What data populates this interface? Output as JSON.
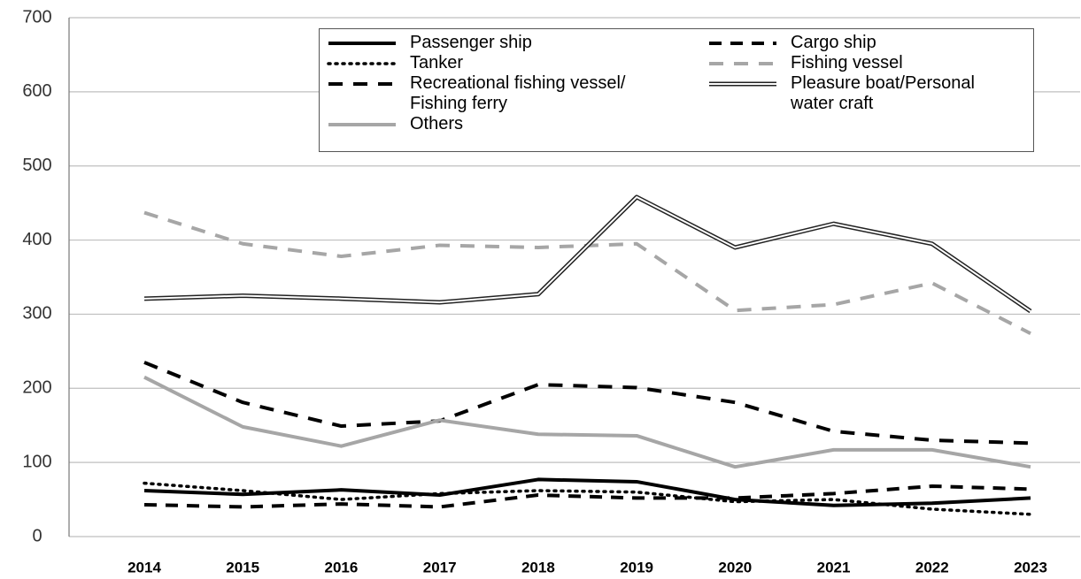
{
  "chart_data": {
    "type": "line",
    "categories": [
      "2014",
      "2015",
      "2016",
      "2017",
      "2018",
      "2019",
      "2020",
      "2021",
      "2022",
      "2023"
    ],
    "series": [
      {
        "name": "Passenger ship",
        "color": "#000000",
        "dash": "none",
        "width": 4,
        "values": [
          62,
          57,
          63,
          56,
          77,
          74,
          50,
          42,
          45,
          52
        ]
      },
      {
        "name": "Cargo ship",
        "color": "#000000",
        "dash": "14 10",
        "width": 4,
        "values": [
          43,
          40,
          44,
          40,
          56,
          52,
          52,
          58,
          68,
          64
        ]
      },
      {
        "name": "Tanker",
        "color": "#000000",
        "dash": "2 6",
        "width": 3.5,
        "values": [
          72,
          62,
          50,
          58,
          62,
          60,
          47,
          50,
          37,
          30
        ]
      },
      {
        "name": "Fishing vessel",
        "color": "#a6a6a6",
        "dash": "16 12",
        "width": 4,
        "values": [
          437,
          395,
          378,
          393,
          390,
          395,
          305,
          313,
          342,
          274
        ]
      },
      {
        "name": "Recreational fishing vessel/\nFishing ferry",
        "color": "#000000",
        "dash": "16 12",
        "width": 4,
        "values": [
          235,
          181,
          149,
          156,
          205,
          201,
          181,
          142,
          130,
          126
        ]
      },
      {
        "name": "Pleasure boat/Personal\nwater craft",
        "color": "#222222",
        "dash": "none",
        "width": 5,
        "double": true,
        "values": [
          321,
          325,
          321,
          316,
          327,
          458,
          390,
          422,
          395,
          304
        ]
      },
      {
        "name": "Others",
        "color": "#a6a6a6",
        "dash": "none",
        "width": 4,
        "values": [
          215,
          148,
          122,
          157,
          138,
          136,
          94,
          117,
          117,
          94
        ]
      }
    ],
    "ylim": [
      0,
      700
    ],
    "yticks": [
      0,
      100,
      200,
      300,
      400,
      500,
      600,
      700
    ],
    "grid": true
  }
}
